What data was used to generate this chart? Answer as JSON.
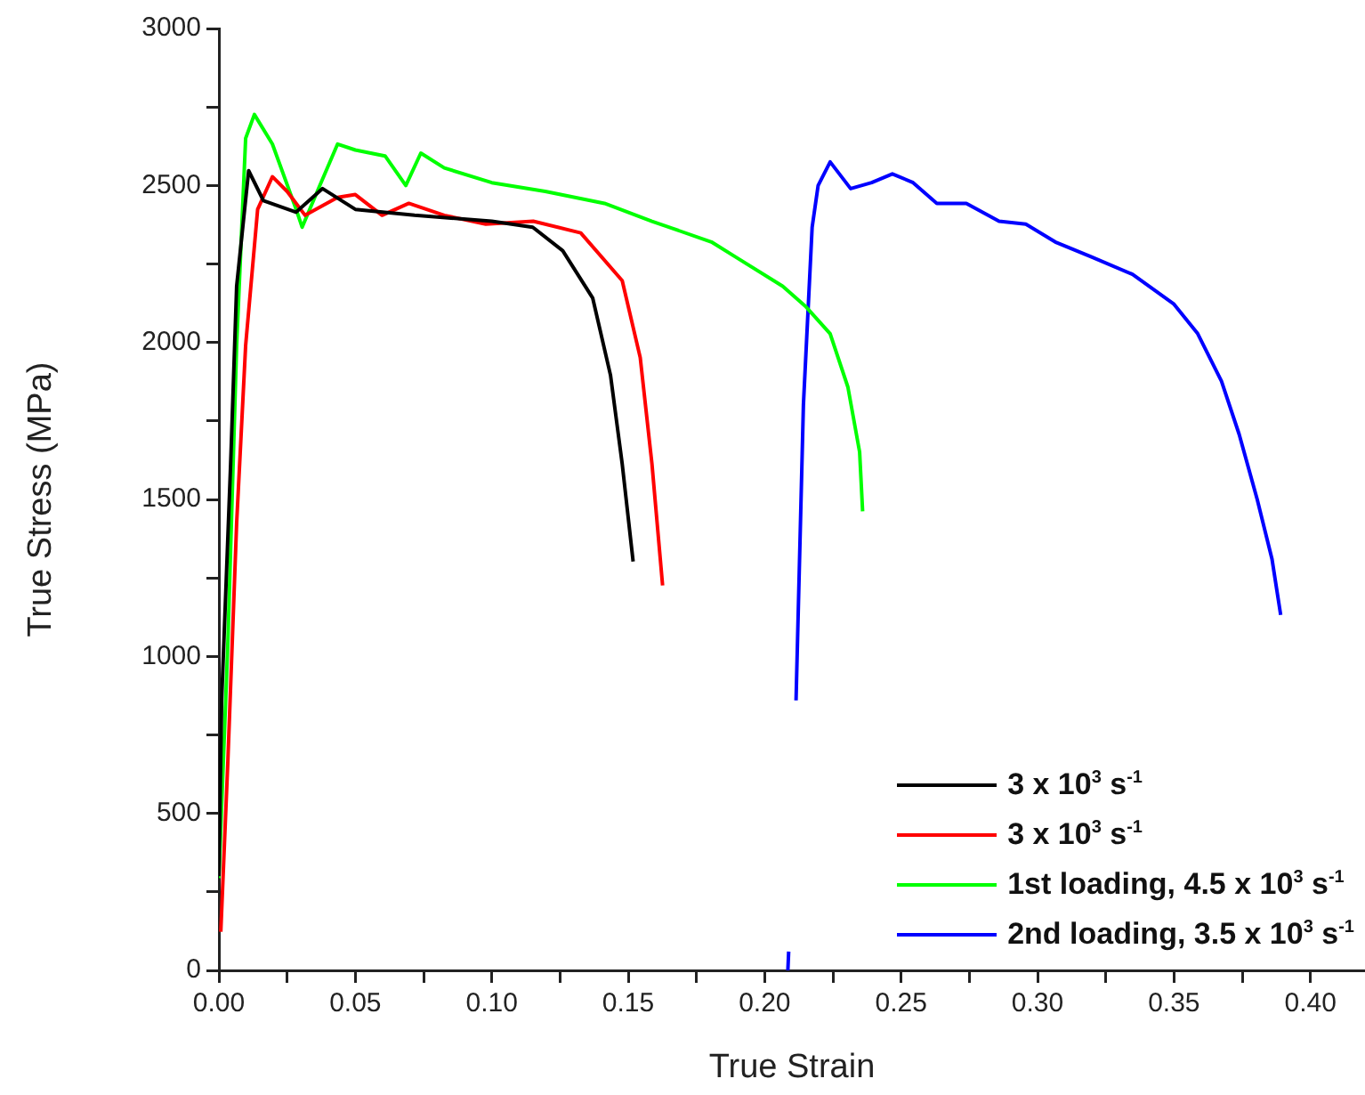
{
  "chart_data": {
    "type": "line",
    "xlabel": "True Strain",
    "ylabel": "True Stress (MPa)",
    "xlim": [
      0,
      0.42
    ],
    "ylim": [
      0,
      3000
    ],
    "xticks": [
      {
        "value": 0,
        "label": "0.00"
      },
      {
        "value": 0.025,
        "label": null
      },
      {
        "value": 0.05,
        "label": "0.05"
      },
      {
        "value": 0.075,
        "label": null
      },
      {
        "value": 0.1,
        "label": "0.10"
      },
      {
        "value": 0.125,
        "label": null
      },
      {
        "value": 0.15,
        "label": "0.15"
      },
      {
        "value": 0.175,
        "label": null
      },
      {
        "value": 0.2,
        "label": "0.20"
      },
      {
        "value": 0.225,
        "label": null
      },
      {
        "value": 0.25,
        "label": "0.25"
      },
      {
        "value": 0.275,
        "label": null
      },
      {
        "value": 0.3,
        "label": "0.30"
      },
      {
        "value": 0.325,
        "label": null
      },
      {
        "value": 0.35,
        "label": "0.35"
      },
      {
        "value": 0.375,
        "label": null
      },
      {
        "value": 0.4,
        "label": "0.40"
      }
    ],
    "yticks": [
      0,
      {
        "value": 250,
        "label": null
      },
      500,
      {
        "value": 750,
        "label": null
      },
      1000,
      {
        "value": 1250,
        "label": null
      },
      1500,
      {
        "value": 1750,
        "label": null
      },
      2000,
      {
        "value": 2250,
        "label": null
      },
      2500,
      {
        "value": 2750,
        "label": null
      },
      3000
    ],
    "grid": false,
    "legend": "bottom right",
    "marker": "none",
    "line_style": "solid",
    "series": [
      {
        "name": "3 x 10$^{3}$ s$^{-1}$",
        "color": "#000000",
        "x": [
          0,
          0.001,
          0.0043,
          0.0065,
          0.0109,
          0.0163,
          0.0283,
          0.038,
          0.05,
          0.0717,
          0.1,
          0.115,
          0.126,
          0.137,
          0.1435,
          0.1478,
          0.1518
        ],
        "values": [
          300,
          858,
          1613,
          2179,
          2547,
          2452,
          2415,
          2490,
          2424,
          2405,
          2386,
          2367,
          2292,
          2141,
          1896,
          1613,
          1302
        ]
      },
      {
        "name": "3 x 10$^{3}$ s$^{-1}$",
        "color": "#ff0000",
        "x": [
          0.0007,
          0.0033,
          0.0065,
          0.0098,
          0.0142,
          0.0196,
          0.025,
          0.0316,
          0.0435,
          0.05,
          0.0598,
          0.0696,
          0.0826,
          0.0978,
          0.1152,
          0.1326,
          0.1478,
          0.1544,
          0.1587,
          0.1626
        ],
        "values": [
          123,
          670,
          1424,
          1990,
          2424,
          2528,
          2481,
          2405,
          2462,
          2471,
          2405,
          2443,
          2405,
          2377,
          2386,
          2349,
          2197,
          1952,
          1613,
          1226
        ]
      },
      {
        "name": "1st loading, 4.5 x 10$^{3}$ s$^{-1}$",
        "color": "#00ff00",
        "x": [
          0,
          0.0033,
          0.0065,
          0.0098,
          0.013,
          0.0196,
          0.0283,
          0.0305,
          0.037,
          0.0435,
          0.05,
          0.0609,
          0.0685,
          0.074,
          0.0826,
          0.1,
          0.1196,
          0.1413,
          0.1587,
          0.1805,
          0.1892,
          0.2066,
          0.2152,
          0.224,
          0.2305,
          0.2348,
          0.2359
        ],
        "values": [
          294,
          1047,
          1990,
          2650,
          2726,
          2632,
          2424,
          2367,
          2500,
          2632,
          2613,
          2594,
          2500,
          2603,
          2556,
          2509,
          2481,
          2443,
          2386,
          2320,
          2273,
          2179,
          2113,
          2028,
          1858,
          1651,
          1462
        ]
      },
      {
        "name": "2nd loading, 3.5 x 10$^{3}$ s$^{-1}$",
        "color": "#0000ff",
        "x": [
          0.2085,
          0.2088,
          0.21,
          0.2115,
          0.2142,
          0.2174,
          0.2196,
          0.224,
          0.2315,
          0.2392,
          0.2468,
          0.2544,
          0.2631,
          0.2739,
          0.2859,
          0.2957,
          0.3065,
          0.3196,
          0.3348,
          0.35,
          0.3587,
          0.3674,
          0.3739,
          0.3805,
          0.3859,
          0.3891
        ],
        "values": [
          0,
          60,
          null,
          860,
          1801,
          2367,
          2500,
          2575,
          2490,
          2509,
          2537,
          2509,
          2443,
          2443,
          2386,
          2377,
          2320,
          2273,
          2217,
          2122,
          2028,
          1877,
          1707,
          1500,
          1311,
          1132
        ]
      }
    ]
  }
}
